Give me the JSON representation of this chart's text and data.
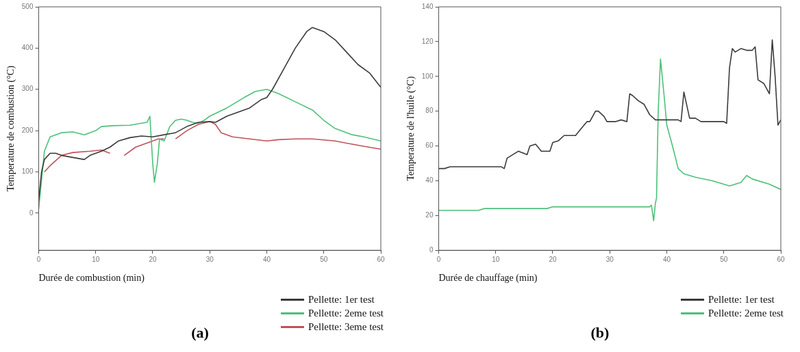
{
  "chart_data": [
    {
      "type": "line",
      "xlabel": "Durée de combustion (min)",
      "ylabel": "Temperature de combustion (°C)",
      "annotations": [
        "(a)"
      ],
      "xlim": [
        0,
        60
      ],
      "xticks": [
        0,
        10,
        20,
        30,
        40,
        50,
        60
      ],
      "ylim": [
        -90,
        500
      ],
      "yticks": [
        0,
        100,
        200,
        300,
        400,
        500
      ],
      "grid": false,
      "legend": "bottom right",
      "line_style": "solid",
      "marker": "none",
      "series": [
        {
          "name": "Pellette: 1er test",
          "color": "#3a3a3a",
          "x": [
            0,
            0.5,
            1,
            2,
            3,
            4,
            6,
            8,
            9,
            11,
            12.5,
            14,
            16,
            18,
            20,
            22,
            24,
            26,
            28,
            30,
            31,
            33,
            35,
            37,
            39,
            40,
            41,
            43,
            45,
            47,
            48,
            50,
            52,
            54,
            56,
            58,
            60
          ],
          "values": [
            30,
            100,
            130,
            145,
            145,
            140,
            135,
            130,
            140,
            150,
            160,
            175,
            183,
            187,
            185,
            190,
            195,
            210,
            220,
            222,
            220,
            235,
            245,
            255,
            275,
            280,
            300,
            350,
            400,
            440,
            450,
            440,
            420,
            390,
            360,
            340,
            305
          ]
        },
        {
          "name": "Pellette: 2eme test",
          "color": "#4cc07a",
          "x": [
            0,
            1,
            2,
            3,
            4,
            6,
            8,
            10,
            11,
            13,
            16,
            18,
            19,
            19.5,
            20,
            20.3,
            20.8,
            21.2,
            22,
            23,
            24,
            25,
            26,
            27,
            28,
            29,
            30,
            33,
            36,
            38,
            40,
            42,
            45,
            48,
            50,
            52,
            55,
            57,
            60
          ],
          "values": [
            10,
            150,
            185,
            190,
            195,
            197,
            190,
            200,
            210,
            212,
            213,
            218,
            220,
            235,
            120,
            75,
            120,
            180,
            175,
            210,
            225,
            228,
            225,
            220,
            218,
            225,
            235,
            255,
            280,
            295,
            300,
            290,
            270,
            250,
            225,
            205,
            190,
            185,
            175
          ]
        },
        {
          "name": "Pellette: 3eme test",
          "color": "#c0505a",
          "x": [
            1,
            2,
            4,
            6,
            9,
            11,
            12.5,
            13,
            15,
            17,
            19,
            21,
            22,
            23,
            24,
            26,
            28,
            30,
            31,
            32,
            34,
            37,
            40,
            42,
            45,
            48,
            52,
            55,
            57,
            60
          ],
          "values": [
            100,
            115,
            140,
            147,
            150,
            153,
            145,
            null,
            140,
            160,
            170,
            180,
            180,
            null,
            180,
            200,
            215,
            222,
            215,
            195,
            185,
            180,
            175,
            178,
            180,
            180,
            175,
            167,
            162,
            155
          ]
        }
      ]
    },
    {
      "type": "line",
      "xlabel": "Durée de chauffage (min)",
      "ylabel": "Temperature de l'huile (°C)",
      "annotations": [
        "(b)"
      ],
      "xlim": [
        0,
        60
      ],
      "xticks": [
        0,
        10,
        20,
        30,
        40,
        50,
        60
      ],
      "ylim": [
        0,
        140
      ],
      "yticks": [
        0,
        20,
        40,
        60,
        80,
        100,
        120,
        140
      ],
      "grid": false,
      "legend": "bottom right",
      "line_style": "solid",
      "marker": "none",
      "series": [
        {
          "name": "Pellette: 1er test",
          "color": "#3a3a3a",
          "x": [
            0,
            1,
            2,
            11,
            11.5,
            12,
            14,
            15.5,
            16,
            17,
            18,
            19.5,
            20,
            21,
            22,
            24,
            25,
            26,
            26.5,
            27.5,
            28,
            29,
            29.5,
            31,
            32,
            33,
            33.5,
            34,
            35,
            36,
            37,
            38,
            42,
            42.5,
            43,
            44,
            45,
            46,
            50,
            50.5,
            51,
            51.5,
            52,
            53,
            54,
            55,
            55.5,
            56,
            57,
            58,
            58.5,
            59,
            59.5,
            60
          ],
          "values": [
            47,
            47,
            48,
            48,
            47,
            53,
            57,
            55,
            60,
            61,
            57,
            57,
            62,
            63,
            66,
            66,
            70,
            74,
            74,
            80,
            80,
            77,
            74,
            74,
            75,
            74,
            90,
            89,
            86,
            84,
            78,
            75,
            75,
            74,
            91,
            76,
            76,
            74,
            74,
            73,
            105,
            116,
            114,
            116,
            115,
            115,
            117,
            98,
            96,
            90,
            121,
            100,
            72,
            75
          ]
        },
        {
          "name": "Pellette: 2eme test",
          "color": "#4cc07a",
          "x": [
            0,
            7,
            8,
            19,
            20,
            37,
            37.3,
            37.7,
            38,
            38.2,
            38.5,
            38.9,
            39.5,
            40,
            41,
            42,
            43,
            45,
            48,
            51,
            53,
            54,
            55,
            58,
            60
          ],
          "values": [
            23,
            23,
            24,
            24,
            25,
            25,
            26,
            17,
            27,
            30,
            80,
            110,
            90,
            72,
            60,
            47,
            44,
            42,
            40,
            37,
            39,
            43,
            41,
            38,
            35
          ]
        }
      ]
    }
  ]
}
